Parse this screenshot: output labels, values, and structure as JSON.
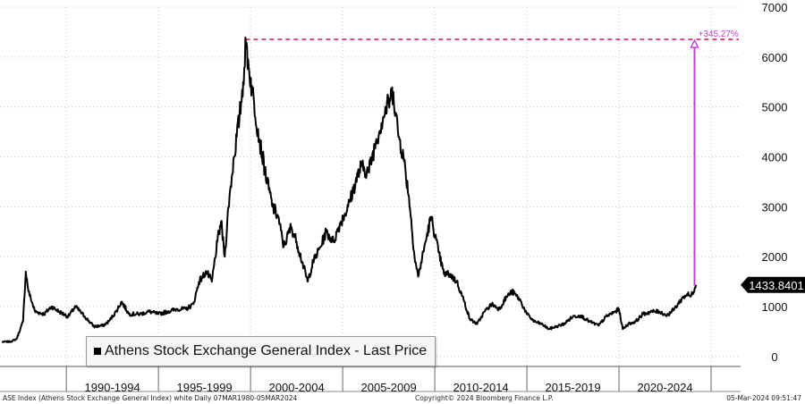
{
  "chart_data": {
    "type": "line",
    "series": [
      {
        "name": "Athens Stock Exchange General Index - Last Price",
        "points": [
          [
            1986.5,
            290
          ],
          [
            1987.0,
            300
          ],
          [
            1987.3,
            350
          ],
          [
            1987.5,
            550
          ],
          [
            1987.65,
            700
          ],
          [
            1987.8,
            1700
          ],
          [
            1987.95,
            1300
          ],
          [
            1988.3,
            900
          ],
          [
            1988.8,
            850
          ],
          [
            1989.2,
            1000
          ],
          [
            1989.6,
            900
          ],
          [
            1990.1,
            800
          ],
          [
            1990.5,
            1000
          ],
          [
            1991.0,
            800
          ],
          [
            1991.5,
            600
          ],
          [
            1992.0,
            620
          ],
          [
            1992.3,
            700
          ],
          [
            1992.7,
            900
          ],
          [
            1993.0,
            1100
          ],
          [
            1993.4,
            850
          ],
          [
            1994.0,
            850
          ],
          [
            1994.5,
            900
          ],
          [
            1995.0,
            850
          ],
          [
            1995.5,
            900
          ],
          [
            1996.0,
            950
          ],
          [
            1996.5,
            950
          ],
          [
            1996.9,
            1050
          ],
          [
            1997.2,
            1500
          ],
          [
            1997.6,
            1700
          ],
          [
            1997.9,
            1500
          ],
          [
            1998.2,
            2300
          ],
          [
            1998.4,
            2700
          ],
          [
            1998.6,
            2000
          ],
          [
            1998.8,
            3000
          ],
          [
            1999.1,
            4000
          ],
          [
            1999.4,
            4800
          ],
          [
            1999.6,
            5500
          ],
          [
            1999.75,
            6300
          ],
          [
            1999.9,
            5800
          ],
          [
            2000.1,
            5300
          ],
          [
            2000.5,
            4300
          ],
          [
            2000.9,
            3500
          ],
          [
            2001.2,
            3000
          ],
          [
            2001.5,
            2800
          ],
          [
            2001.8,
            2200
          ],
          [
            2002.2,
            2600
          ],
          [
            2002.5,
            2300
          ],
          [
            2002.8,
            1900
          ],
          [
            2003.1,
            1500
          ],
          [
            2003.4,
            1900
          ],
          [
            2003.8,
            2200
          ],
          [
            2004.1,
            2500
          ],
          [
            2004.5,
            2300
          ],
          [
            2004.9,
            2700
          ],
          [
            2005.3,
            3000
          ],
          [
            2005.7,
            3500
          ],
          [
            2006.0,
            3800
          ],
          [
            2006.4,
            3700
          ],
          [
            2006.8,
            4300
          ],
          [
            2007.2,
            4800
          ],
          [
            2007.5,
            5100
          ],
          [
            2007.75,
            5300
          ],
          [
            2008.0,
            4500
          ],
          [
            2008.3,
            4000
          ],
          [
            2008.6,
            3200
          ],
          [
            2008.9,
            2000
          ],
          [
            2009.1,
            1600
          ],
          [
            2009.5,
            2300
          ],
          [
            2009.8,
            2800
          ],
          [
            2010.2,
            2100
          ],
          [
            2010.5,
            1650
          ],
          [
            2010.8,
            1650
          ],
          [
            2011.2,
            1500
          ],
          [
            2011.6,
            1100
          ],
          [
            2011.9,
            750
          ],
          [
            2012.3,
            650
          ],
          [
            2012.7,
            900
          ],
          [
            2013.1,
            1050
          ],
          [
            2013.5,
            950
          ],
          [
            2013.9,
            1200
          ],
          [
            2014.2,
            1300
          ],
          [
            2014.6,
            1150
          ],
          [
            2015.0,
            850
          ],
          [
            2015.4,
            700
          ],
          [
            2015.8,
            650
          ],
          [
            2016.2,
            550
          ],
          [
            2016.6,
            600
          ],
          [
            2017.0,
            650
          ],
          [
            2017.5,
            800
          ],
          [
            2017.9,
            820
          ],
          [
            2018.4,
            700
          ],
          [
            2018.9,
            620
          ],
          [
            2019.3,
            800
          ],
          [
            2019.8,
            900
          ],
          [
            2020.0,
            950
          ],
          [
            2020.2,
            550
          ],
          [
            2020.5,
            650
          ],
          [
            2020.9,
            700
          ],
          [
            2021.3,
            850
          ],
          [
            2021.8,
            900
          ],
          [
            2022.2,
            900
          ],
          [
            2022.6,
            820
          ],
          [
            2023.0,
            950
          ],
          [
            2023.4,
            1150
          ],
          [
            2023.7,
            1250
          ],
          [
            2023.9,
            1200
          ],
          [
            2024.18,
            1433.84
          ]
        ]
      }
    ],
    "ylim": [
      -200,
      7000
    ],
    "xlim": [
      1986.4,
      2026.6
    ],
    "yticks": [
      0,
      1000,
      2000,
      3000,
      4000,
      5000,
      6000,
      7000
    ],
    "xtick_labels": [
      "1990-1994",
      "1995-1999",
      "2000-2004",
      "2005-2009",
      "2010-2014",
      "2015-2019",
      "2020-2024"
    ],
    "last_value_label": "1433.8401",
    "annotation": {
      "text": "+345.27%",
      "peak_value": 6355,
      "peak_date": 1999.72,
      "arrow_date": 2024.1,
      "line_color": "#e0245e",
      "arrow_color": "#c040d0"
    },
    "line_color": "#000000",
    "legend_position": "bottom-left"
  },
  "legend": {
    "label": "Athens Stock Exchange General Index - Last Price"
  },
  "footer": {
    "left": "ASE Index (Athens Stock Exchange General Index) white  Daily 07MAR1980-05MAR2024",
    "center": "Copyright© 2024 Bloomberg Finance L.P.",
    "right": "05-Mar-2024 09:51:47"
  }
}
